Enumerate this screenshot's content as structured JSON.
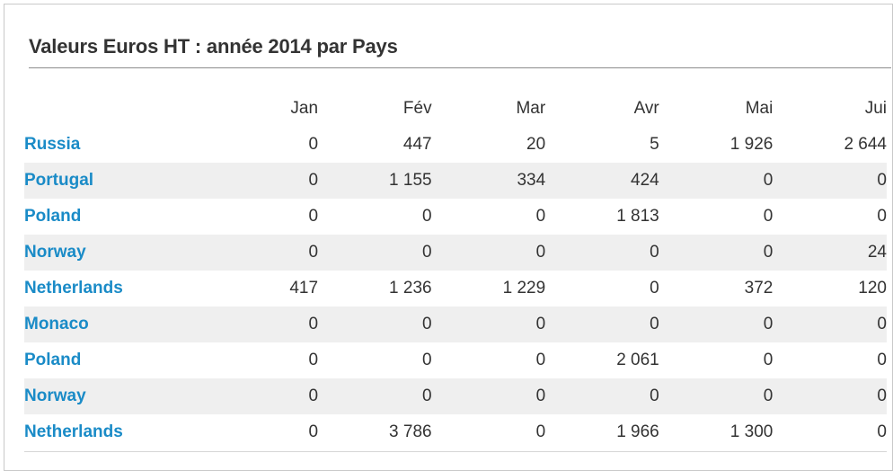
{
  "title": "Valeurs Euros HT : année 2014 par Pays",
  "months": [
    "Jan",
    "Fév",
    "Mar",
    "Avr",
    "Mai",
    "Jui"
  ],
  "rows": [
    {
      "country": "Russia",
      "values": [
        "0",
        "447",
        "20",
        "5",
        "1 926",
        "2 644"
      ]
    },
    {
      "country": "Portugal",
      "values": [
        "0",
        "1 155",
        "334",
        "424",
        "0",
        "0"
      ]
    },
    {
      "country": "Poland",
      "values": [
        "0",
        "0",
        "0",
        "1 813",
        "0",
        "0"
      ]
    },
    {
      "country": "Norway",
      "values": [
        "0",
        "0",
        "0",
        "0",
        "0",
        "24"
      ]
    },
    {
      "country": "Netherlands",
      "values": [
        "417",
        "1 236",
        "1 229",
        "0",
        "372",
        "120"
      ]
    },
    {
      "country": "Monaco",
      "values": [
        "0",
        "0",
        "0",
        "0",
        "0",
        "0"
      ]
    },
    {
      "country": "Poland",
      "values": [
        "0",
        "0",
        "0",
        "2 061",
        "0",
        "0"
      ]
    },
    {
      "country": "Norway",
      "values": [
        "0",
        "0",
        "0",
        "0",
        "0",
        "0"
      ]
    },
    {
      "country": "Netherlands",
      "values": [
        "0",
        "3 786",
        "0",
        "1 966",
        "1 300",
        "0"
      ]
    }
  ],
  "colors": {
    "link": "#1a8bc7",
    "text": "#333333",
    "stripe": "#efefef"
  }
}
